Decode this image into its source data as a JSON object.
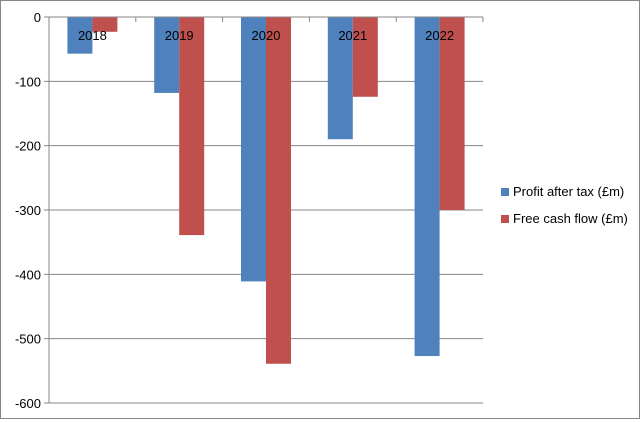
{
  "chart_data": {
    "type": "bar",
    "title": "",
    "xlabel": "",
    "ylabel": "",
    "categories": [
      "2018",
      "2019",
      "2020",
      "2021",
      "2022"
    ],
    "series": [
      {
        "name": "Profit after tax (£m)",
        "color": "#4F81BD",
        "values": [
          -57,
          -118,
          -411,
          -190,
          -527
        ]
      },
      {
        "name": "Free cash flow (£m)",
        "color": "#C0504D",
        "values": [
          -23,
          -339,
          -539,
          -124,
          -300
        ]
      }
    ],
    "ylim": [
      -600,
      0
    ],
    "yticks": [
      0,
      -100,
      -200,
      -300,
      -400,
      -500,
      -600
    ],
    "ytick_labels": [
      "0",
      "-100",
      "-200",
      "-300",
      "-400",
      "-500",
      "-600"
    ],
    "grid": true,
    "legend_position": "right",
    "category_axis_position": "top"
  }
}
